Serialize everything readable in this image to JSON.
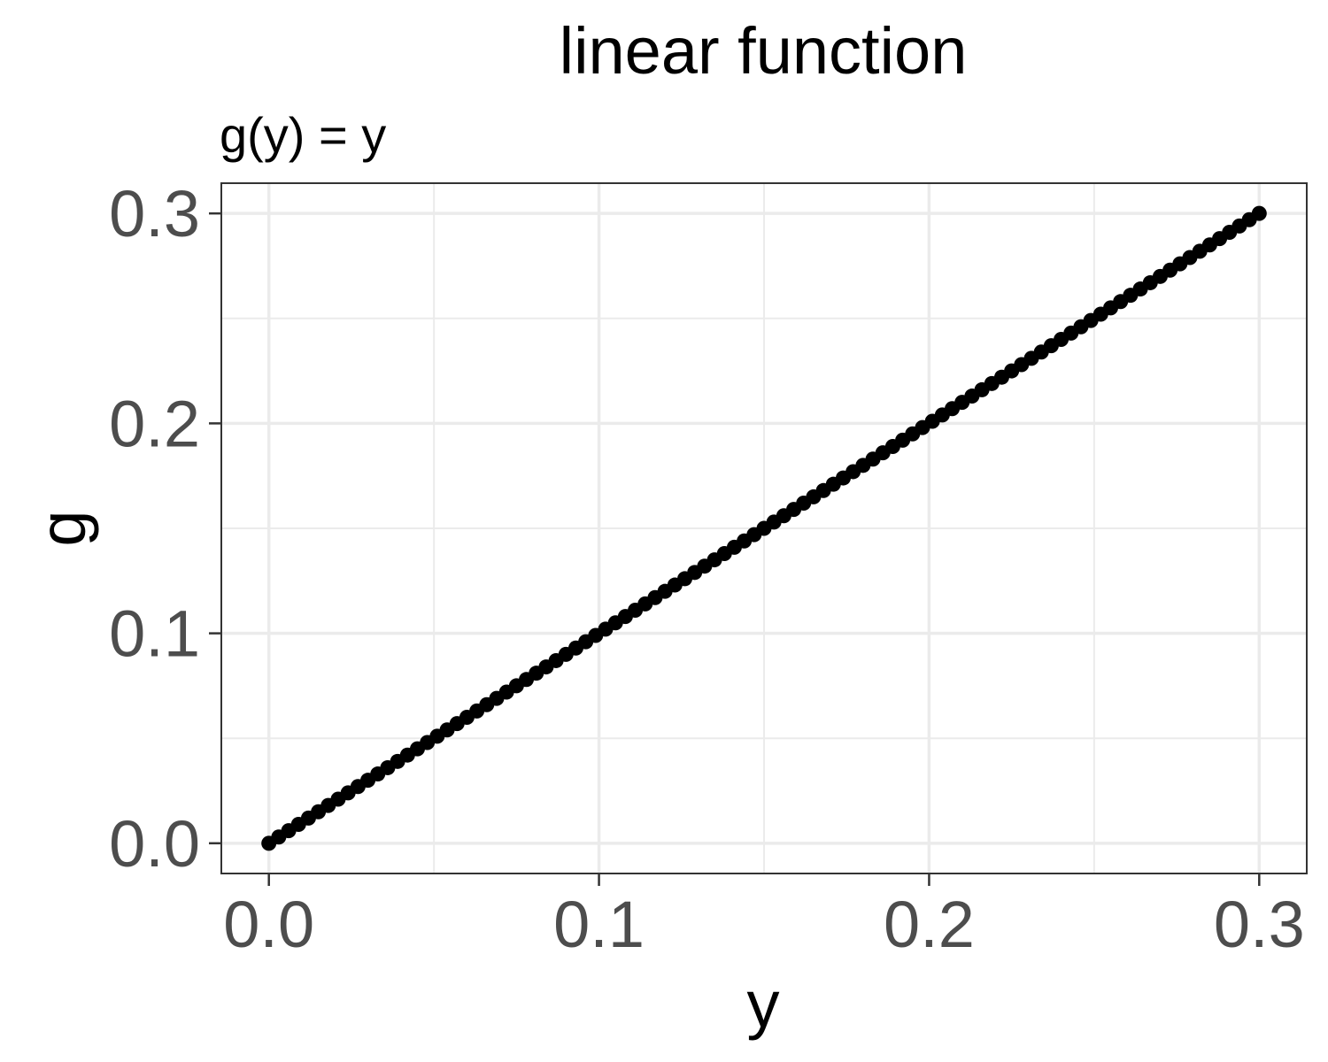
{
  "chart_data": {
    "type": "scatter",
    "title": "linear function",
    "subtitle": "g(y) = y",
    "xlabel": "y",
    "ylabel": "g",
    "x_range": [
      0,
      0.3
    ],
    "x_step": 0.003,
    "function": "g(y) = y",
    "xlim": [
      -0.0144,
      0.3144
    ],
    "ylim": [
      -0.0144,
      0.3144
    ],
    "xticks": [
      0.0,
      0.1,
      0.2,
      0.3
    ],
    "yticks": [
      0.0,
      0.1,
      0.2,
      0.3
    ],
    "xtick_labels": [
      "0.0",
      "0.1",
      "0.2",
      "0.3"
    ],
    "ytick_labels": [
      "0.0",
      "0.1",
      "0.2",
      "0.3"
    ],
    "grid": true,
    "legend": "none",
    "point_color": "#000000",
    "grid_color": "#ebebeb",
    "panel_border_color": "#333333"
  }
}
